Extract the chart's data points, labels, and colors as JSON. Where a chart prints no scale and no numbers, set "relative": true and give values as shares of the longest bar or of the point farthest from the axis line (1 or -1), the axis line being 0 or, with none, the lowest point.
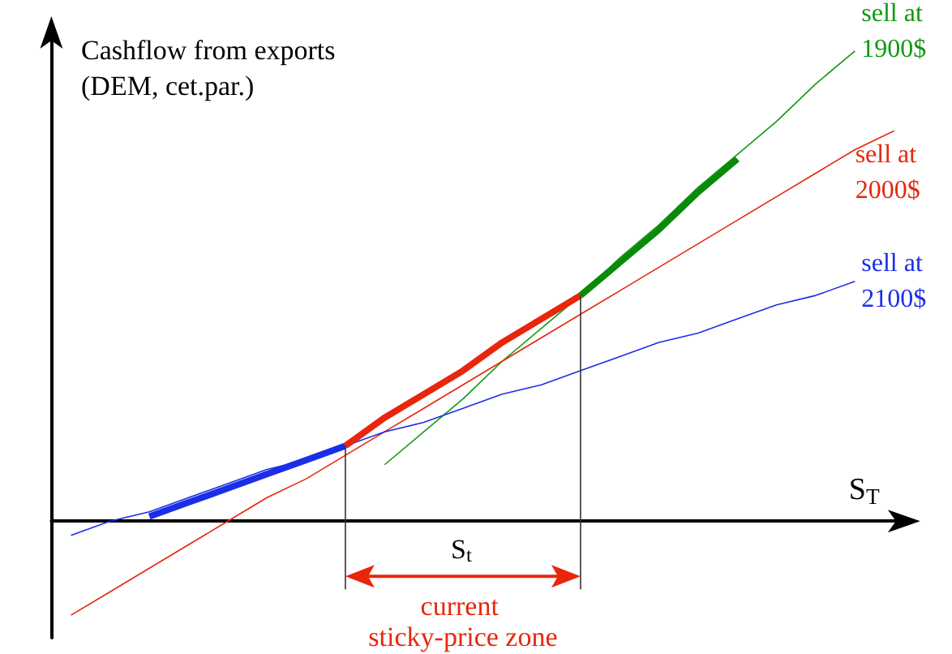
{
  "chart_data": {
    "type": "line",
    "relative": true,
    "xlabel": "S$_{T}$",
    "ylabel": "Cashflow from exports (DEM, cet.par.)",
    "annotations": [
      "S$_{t}$",
      "current sticky-price zone"
    ],
    "grid": false,
    "legend": false,
    "marker": "none",
    "line_style": "solid",
    "categories": [
      null,
      null,
      null,
      null,
      null,
      null,
      null,
      null,
      null,
      null,
      null,
      null,
      null,
      null,
      null,
      null,
      null,
      null,
      null,
      null,
      null,
      null
    ],
    "series": [
      {
        "name": "sell at 1900$",
        "color": "#119911",
        "values": [
          null,
          null,
          null,
          null,
          null,
          null,
          null,
          null,
          0.12,
          0.19,
          0.26,
          0.34,
          0.41,
          0.48,
          0.56,
          0.63,
          0.71,
          0.78,
          0.85,
          0.93,
          1,
          null
        ]
      },
      {
        "name": "sell at 2000$",
        "color": "#e8260c",
        "values": [
          -0.2,
          -0.15,
          -0.1,
          -0.05,
          0,
          0.05,
          0.09,
          0.14,
          0.19,
          0.24,
          0.29,
          0.34,
          0.39,
          0.44,
          0.49,
          0.54,
          0.59,
          0.64,
          0.69,
          0.74,
          0.79,
          0.83
        ]
      },
      {
        "name": "sell at 2100$",
        "color": "#1a2ee8",
        "values": [
          -0.03,
          0,
          0.02,
          0.05,
          0.08,
          0.11,
          0.13,
          0.16,
          0.19,
          0.21,
          0.24,
          0.27,
          0.29,
          0.32,
          0.35,
          0.38,
          0.4,
          0.43,
          0.46,
          0.48,
          0.51,
          null
        ]
      },
      {
        "color": "#1a2ee8",
        "values": [
          null,
          null,
          0.01,
          0.04,
          0.07,
          0.1,
          0.13,
          0.16,
          null,
          null,
          null,
          null,
          null,
          null,
          null,
          null,
          null,
          null,
          null,
          null,
          null,
          null
        ]
      },
      {
        "color": "#e8260c",
        "values": [
          null,
          null,
          null,
          null,
          null,
          null,
          null,
          0.16,
          0.22,
          0.27,
          0.32,
          0.38,
          0.43,
          0.48,
          null,
          null,
          null,
          null,
          null,
          null,
          null,
          null
        ]
      },
      {
        "color": "#0a8a0a",
        "values": [
          null,
          null,
          null,
          null,
          null,
          null,
          null,
          null,
          null,
          null,
          null,
          null,
          null,
          0.48,
          0.55,
          0.62,
          0.7,
          0.77,
          null,
          null,
          null,
          null
        ]
      }
    ]
  }
}
